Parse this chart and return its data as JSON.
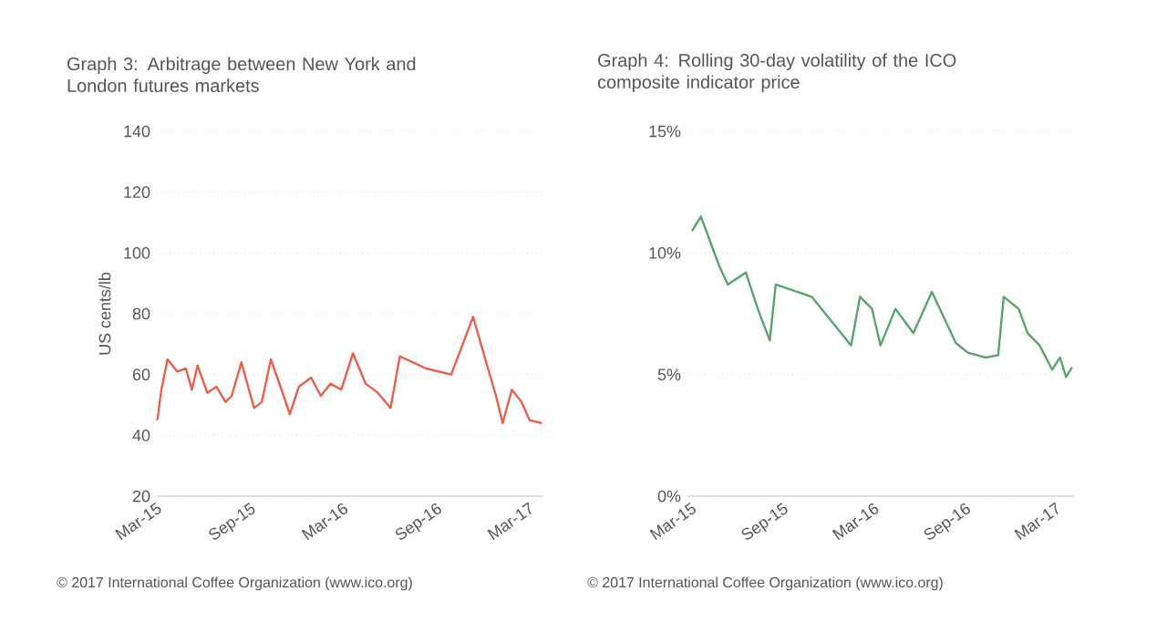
{
  "chart_data": [
    {
      "type": "line",
      "title": "Graph 3:  Arbitrage between New York and London futures markets",
      "ylabel": "US cents/lb",
      "x": [
        "2015-03-01",
        "2015-03-09",
        "2015-03-21",
        "2015-04-09",
        "2015-04-26",
        "2015-05-08",
        "2015-05-19",
        "2015-06-07",
        "2015-06-25",
        "2015-07-13",
        "2015-07-25",
        "2015-08-13",
        "2015-09-07",
        "2015-09-22",
        "2015-10-10",
        "2015-11-04",
        "2015-11-16",
        "2015-12-04",
        "2015-12-28",
        "2016-01-16",
        "2016-02-04",
        "2016-02-25",
        "2016-03-19",
        "2016-04-13",
        "2016-05-07",
        "2016-06-01",
        "2016-06-19",
        "2016-08-10",
        "2016-09-28",
        "2016-11-10",
        "2016-12-04",
        "2016-12-25",
        "2017-01-07",
        "2017-01-25",
        "2017-02-13",
        "2017-03-01",
        "2017-03-25"
      ],
      "series": [
        {
          "color": "#e8604c",
          "values": [
            45,
            55,
            65,
            61,
            62,
            55,
            63,
            54,
            56,
            51,
            53,
            64,
            49,
            51,
            65,
            53,
            47,
            56,
            59,
            53,
            57,
            55,
            67,
            57,
            54,
            49,
            66,
            62,
            60,
            79,
            65,
            53,
            44,
            55,
            51,
            45,
            44
          ]
        }
      ],
      "xlim": [
        "2015-02-28",
        "2017-03-28"
      ],
      "ylim": [
        20,
        140
      ],
      "xticks": [
        {
          "value": "2015-03-01",
          "label": "Mar-15"
        },
        {
          "value": "2015-09-01",
          "label": "Sep-15"
        },
        {
          "value": "2016-03-01",
          "label": "Mar-16"
        },
        {
          "value": "2016-09-01",
          "label": "Sep-16"
        },
        {
          "value": "2017-03-01",
          "label": "Mar-17"
        }
      ],
      "yticks": [
        20,
        40,
        60,
        80,
        100,
        120,
        140
      ],
      "grid": "y",
      "annotations": [
        "© 2017 International Coffee Organization (www.ico.org)"
      ]
    },
    {
      "type": "line",
      "title": "Graph 4:  Rolling 30-day volatility of the ICO composite indicator price",
      "x": [
        "2015-03-01",
        "2015-03-19",
        "2015-04-06",
        "2015-04-24",
        "2015-05-12",
        "2015-06-17",
        "2015-07-11",
        "2015-08-04",
        "2015-08-16",
        "2015-10-27",
        "2016-01-14",
        "2016-02-01",
        "2016-02-25",
        "2016-03-13",
        "2016-04-12",
        "2016-05-18",
        "2016-06-24",
        "2016-07-17",
        "2016-08-11",
        "2016-09-04",
        "2016-10-10",
        "2016-11-04",
        "2016-11-15",
        "2016-12-15",
        "2017-01-02",
        "2017-01-26",
        "2017-02-20",
        "2017-03-08",
        "2017-03-20",
        "2017-04-01"
      ],
      "series": [
        {
          "color": "#5aa469",
          "values": [
            10.9,
            11.5,
            10.5,
            9.5,
            8.7,
            9.2,
            7.7,
            6.4,
            8.7,
            8.2,
            6.2,
            8.2,
            7.7,
            6.2,
            7.7,
            6.7,
            8.4,
            7.4,
            6.3,
            5.9,
            5.7,
            5.8,
            8.2,
            7.7,
            6.7,
            6.2,
            5.2,
            5.7,
            4.9,
            5.3
          ]
        }
      ],
      "xlim": [
        "2015-02-20",
        "2017-04-05"
      ],
      "ylim": [
        0,
        15
      ],
      "xticks": [
        {
          "value": "2015-03-01",
          "label": "Mar-15"
        },
        {
          "value": "2015-09-01",
          "label": "Sep-15"
        },
        {
          "value": "2016-03-01",
          "label": "Mar-16"
        },
        {
          "value": "2016-09-01",
          "label": "Sep-16"
        },
        {
          "value": "2017-03-01",
          "label": "Mar-17"
        }
      ],
      "yticks": [
        {
          "value": 0,
          "label": "0%"
        },
        {
          "value": 5,
          "label": "5%"
        },
        {
          "value": 10,
          "label": "10%"
        },
        {
          "value": 15,
          "label": "15%"
        }
      ],
      "grid": "y",
      "annotations": [
        "© 2017 International Coffee Organization (www.ico.org)"
      ]
    }
  ]
}
